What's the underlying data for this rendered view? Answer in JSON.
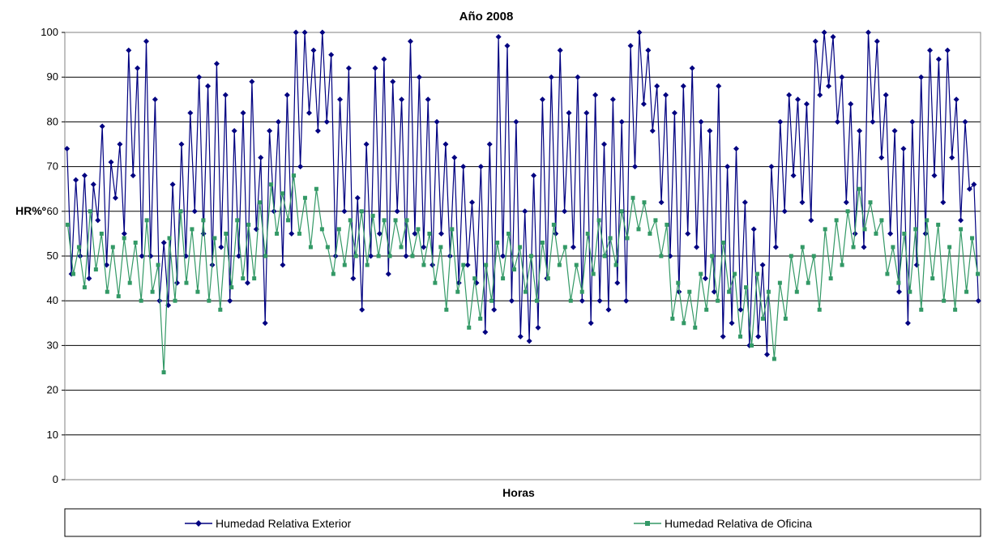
{
  "chart_data": {
    "type": "line",
    "title": "Año 2008",
    "xlabel": "Horas",
    "ylabel": "HR%º",
    "ylim": [
      0,
      100
    ],
    "yticks": [
      0,
      10,
      20,
      30,
      40,
      50,
      60,
      70,
      80,
      90,
      100
    ],
    "grid": true,
    "legend_position": "bottom",
    "series": [
      {
        "name": "Humedad Relativa Exterior",
        "color": "#000080",
        "marker": "diamond",
        "values": [
          74,
          46,
          67,
          50,
          68,
          45,
          66,
          58,
          79,
          48,
          71,
          63,
          75,
          55,
          96,
          68,
          92,
          50,
          98,
          50,
          85,
          40,
          53,
          39,
          66,
          44,
          75,
          50,
          82,
          60,
          90,
          55,
          88,
          48,
          93,
          52,
          86,
          40,
          78,
          50,
          82,
          44,
          89,
          56,
          72,
          35,
          78,
          60,
          80,
          48,
          86,
          55,
          100,
          70,
          100,
          82,
          96,
          78,
          100,
          80,
          95,
          50,
          85,
          60,
          92,
          45,
          63,
          38,
          75,
          50,
          92,
          55,
          94,
          46,
          89,
          60,
          85,
          50,
          98,
          55,
          90,
          52,
          85,
          48,
          80,
          55,
          75,
          50,
          72,
          44,
          70,
          48,
          62,
          44,
          70,
          33,
          75,
          38,
          99,
          50,
          97,
          40,
          80,
          32,
          60,
          31,
          68,
          34,
          85,
          45,
          90,
          55,
          96,
          60,
          82,
          52,
          90,
          40,
          82,
          35,
          86,
          40,
          75,
          38,
          85,
          44,
          80,
          40,
          97,
          70,
          100,
          84,
          96,
          78,
          88,
          62,
          86,
          50,
          82,
          42,
          88,
          55,
          92,
          52,
          80,
          45,
          78,
          42,
          88,
          32,
          70,
          35,
          74,
          38,
          62,
          30,
          56,
          32,
          48,
          28,
          70,
          52,
          80,
          60,
          86,
          68,
          85,
          62,
          84,
          58,
          98,
          86,
          100,
          88,
          99,
          80,
          90,
          62,
          84,
          55,
          78,
          52,
          100,
          80,
          98,
          72,
          86,
          55,
          78,
          42,
          74,
          35,
          80,
          48,
          90,
          55,
          96,
          68,
          94,
          62,
          96,
          72,
          85,
          58,
          80,
          65,
          66,
          40
        ]
      },
      {
        "name": "Humedad Relativa de Oficina",
        "color": "#339966",
        "marker": "square",
        "values": [
          57,
          46,
          52,
          43,
          60,
          47,
          55,
          42,
          52,
          41,
          54,
          44,
          53,
          40,
          58,
          42,
          48,
          24,
          54,
          40,
          60,
          44,
          56,
          42,
          58,
          40,
          54,
          38,
          55,
          43,
          58,
          45,
          57,
          45,
          62,
          50,
          66,
          55,
          64,
          58,
          68,
          55,
          63,
          52,
          65,
          56,
          52,
          46,
          56,
          48,
          58,
          50,
          60,
          48,
          59,
          50,
          58,
          50,
          58,
          52,
          58,
          50,
          56,
          48,
          55,
          44,
          52,
          38,
          56,
          42,
          48,
          34,
          45,
          36,
          48,
          40,
          53,
          45,
          55,
          47,
          52,
          42,
          50,
          40,
          53,
          45,
          57,
          48,
          52,
          40,
          48,
          42,
          55,
          46,
          58,
          50,
          54,
          48,
          60,
          54,
          63,
          56,
          62,
          55,
          58,
          50,
          57,
          36,
          44,
          35,
          42,
          34,
          46,
          38,
          50,
          40,
          53,
          42,
          46,
          32,
          43,
          30,
          46,
          36,
          42,
          27,
          44,
          36,
          50,
          42,
          52,
          44,
          50,
          38,
          56,
          45,
          58,
          48,
          60,
          52,
          65,
          56,
          62,
          55,
          58,
          46,
          52,
          44,
          55,
          42,
          56,
          38,
          58,
          45,
          57,
          40,
          52,
          38,
          56,
          42,
          54,
          46
        ]
      }
    ]
  }
}
